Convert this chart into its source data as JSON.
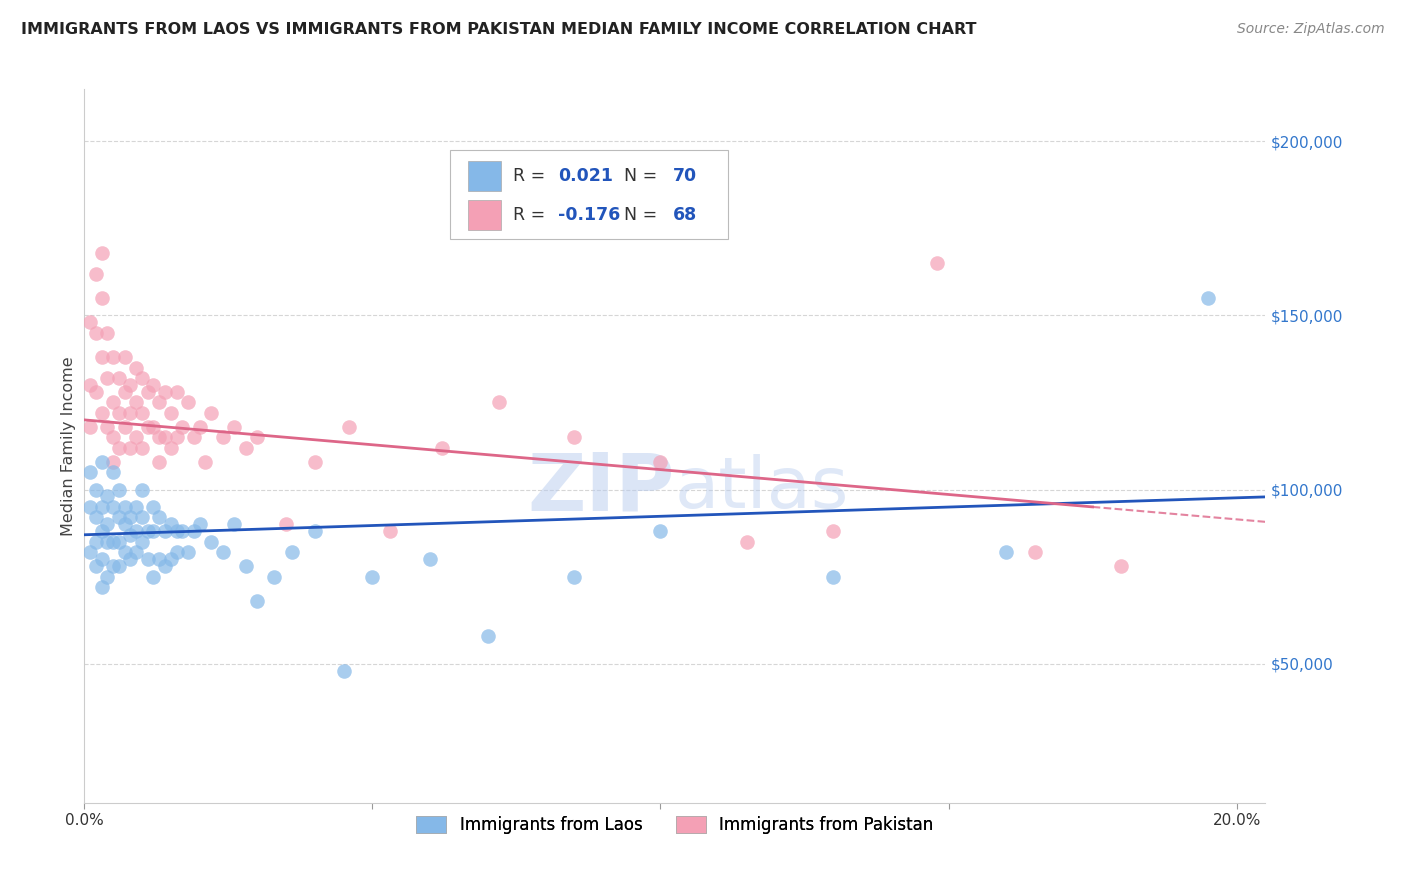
{
  "title": "IMMIGRANTS FROM LAOS VS IMMIGRANTS FROM PAKISTAN MEDIAN FAMILY INCOME CORRELATION CHART",
  "source": "Source: ZipAtlas.com",
  "ylabel": "Median Family Income",
  "xlim": [
    0.0,
    0.205
  ],
  "ylim": [
    10000,
    215000
  ],
  "laos_color": "#85B8E8",
  "pakistan_color": "#F4A0B5",
  "laos_line_color": "#2255BB",
  "pakistan_line_color": "#DD6688",
  "laos_R": 0.021,
  "laos_N": 70,
  "pakistan_R": -0.176,
  "pakistan_N": 68,
  "background_color": "#ffffff",
  "grid_color": "#cccccc",
  "laos_x": [
    0.001,
    0.001,
    0.001,
    0.002,
    0.002,
    0.002,
    0.002,
    0.003,
    0.003,
    0.003,
    0.003,
    0.003,
    0.004,
    0.004,
    0.004,
    0.004,
    0.005,
    0.005,
    0.005,
    0.005,
    0.006,
    0.006,
    0.006,
    0.006,
    0.007,
    0.007,
    0.007,
    0.008,
    0.008,
    0.008,
    0.009,
    0.009,
    0.009,
    0.01,
    0.01,
    0.01,
    0.011,
    0.011,
    0.012,
    0.012,
    0.012,
    0.013,
    0.013,
    0.014,
    0.014,
    0.015,
    0.015,
    0.016,
    0.016,
    0.017,
    0.018,
    0.019,
    0.02,
    0.022,
    0.024,
    0.026,
    0.028,
    0.03,
    0.033,
    0.036,
    0.04,
    0.045,
    0.05,
    0.06,
    0.07,
    0.085,
    0.1,
    0.13,
    0.16,
    0.195
  ],
  "laos_y": [
    105000,
    95000,
    82000,
    100000,
    92000,
    85000,
    78000,
    108000,
    95000,
    88000,
    80000,
    72000,
    98000,
    90000,
    85000,
    75000,
    105000,
    95000,
    85000,
    78000,
    100000,
    92000,
    85000,
    78000,
    95000,
    90000,
    82000,
    92000,
    87000,
    80000,
    95000,
    88000,
    82000,
    100000,
    92000,
    85000,
    88000,
    80000,
    95000,
    88000,
    75000,
    92000,
    80000,
    88000,
    78000,
    90000,
    80000,
    88000,
    82000,
    88000,
    82000,
    88000,
    90000,
    85000,
    82000,
    90000,
    78000,
    68000,
    75000,
    82000,
    88000,
    48000,
    75000,
    80000,
    58000,
    75000,
    88000,
    75000,
    82000,
    155000
  ],
  "pakistan_x": [
    0.001,
    0.001,
    0.001,
    0.002,
    0.002,
    0.002,
    0.003,
    0.003,
    0.003,
    0.003,
    0.004,
    0.004,
    0.004,
    0.005,
    0.005,
    0.005,
    0.005,
    0.006,
    0.006,
    0.006,
    0.007,
    0.007,
    0.007,
    0.008,
    0.008,
    0.008,
    0.009,
    0.009,
    0.009,
    0.01,
    0.01,
    0.01,
    0.011,
    0.011,
    0.012,
    0.012,
    0.013,
    0.013,
    0.013,
    0.014,
    0.014,
    0.015,
    0.015,
    0.016,
    0.016,
    0.017,
    0.018,
    0.019,
    0.02,
    0.021,
    0.022,
    0.024,
    0.026,
    0.028,
    0.03,
    0.035,
    0.04,
    0.046,
    0.053,
    0.062,
    0.072,
    0.085,
    0.1,
    0.115,
    0.13,
    0.148,
    0.165,
    0.18
  ],
  "pakistan_y": [
    148000,
    130000,
    118000,
    162000,
    145000,
    128000,
    168000,
    155000,
    138000,
    122000,
    145000,
    132000,
    118000,
    138000,
    125000,
    115000,
    108000,
    132000,
    122000,
    112000,
    138000,
    128000,
    118000,
    130000,
    122000,
    112000,
    135000,
    125000,
    115000,
    132000,
    122000,
    112000,
    128000,
    118000,
    130000,
    118000,
    125000,
    115000,
    108000,
    128000,
    115000,
    122000,
    112000,
    128000,
    115000,
    118000,
    125000,
    115000,
    118000,
    108000,
    122000,
    115000,
    118000,
    112000,
    115000,
    90000,
    108000,
    118000,
    88000,
    112000,
    125000,
    115000,
    108000,
    85000,
    88000,
    165000,
    82000,
    78000
  ]
}
